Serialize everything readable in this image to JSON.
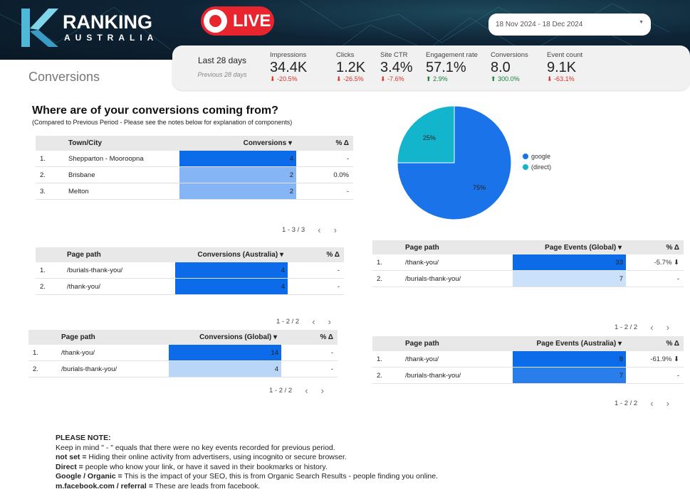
{
  "header": {
    "logo": {
      "line1": "RANKING",
      "line2": "AUSTRALIA"
    },
    "live_label": "LIVE",
    "date_range": "18 Nov 2024 - 18 Dec 2024",
    "live_color": "#e8252e"
  },
  "page_title": "Conversions",
  "scorecards": {
    "period": "Last 28 days",
    "compare": "Previous 28 days",
    "items": [
      {
        "label": "Impressions",
        "value": "34.4K",
        "delta": "-20.5%",
        "dir": "down"
      },
      {
        "label": "Clicks",
        "value": "1.2K",
        "delta": "-26.5%",
        "dir": "down"
      },
      {
        "label": "Site CTR",
        "value": "3.4%",
        "delta": "-7.6%",
        "dir": "down"
      },
      {
        "label": "Engagement rate",
        "value": "57.1%",
        "delta": "2.9%",
        "dir": "up"
      },
      {
        "label": "Conversions",
        "value": "8.0",
        "delta": "300.0%",
        "dir": "up"
      },
      {
        "label": "Event count",
        "value": "9.1K",
        "delta": "-63.1%",
        "dir": "down"
      }
    ]
  },
  "section": {
    "title": "Where are of your conversions coming from?",
    "subtitle": "(Compared to Previous Period - Please see the notes below for explanation of components)"
  },
  "tables": [
    {
      "headers": [
        "Town/City",
        "Conversions ▾",
        "% Δ"
      ],
      "rows": [
        {
          "num": "1.",
          "name": "Shepparton - Mooroopna",
          "value": 4,
          "delta": "-"
        },
        {
          "num": "2.",
          "name": "Brisbane",
          "value": 2,
          "delta": "0.0%"
        },
        {
          "num": "3.",
          "name": "Melton",
          "value": 2,
          "delta": "-"
        }
      ],
      "pagination": "1 - 3 / 3"
    },
    {
      "headers": [
        "Page path",
        "Conversions (Australia) ▾",
        "% Δ"
      ],
      "rows": [
        {
          "num": "1.",
          "name": "/burials-thank-you/",
          "value": 4,
          "delta": "-"
        },
        {
          "num": "2.",
          "name": "/thank-you/",
          "value": 4,
          "delta": "-"
        }
      ],
      "pagination": "1 - 2 / 2"
    },
    {
      "headers": [
        "Page path",
        "Conversions (Global) ▾",
        "% Δ"
      ],
      "rows": [
        {
          "num": "1.",
          "name": "/thank-you/",
          "value": 14,
          "delta": "-"
        },
        {
          "num": "2.",
          "name": "/burials-thank-you/",
          "value": 4,
          "delta": "-"
        }
      ],
      "pagination": "1 - 2 / 2"
    },
    {
      "headers": [
        "Page path",
        "Page Events (Global) ▾",
        "% Δ"
      ],
      "rows": [
        {
          "num": "1.",
          "name": "/thank-you/",
          "value": 33,
          "delta": "-5.7% ⬇"
        },
        {
          "num": "2.",
          "name": "/burials-thank-you/",
          "value": 7,
          "delta": "-"
        }
      ],
      "pagination": "1 - 2 / 2"
    },
    {
      "headers": [
        "Page path",
        "Page Events (Australia) ▾",
        "% Δ"
      ],
      "rows": [
        {
          "num": "1.",
          "name": "/thank-you/",
          "value": 8,
          "delta": "-61.9% ⬇"
        },
        {
          "num": "2.",
          "name": "/burials-thank-you/",
          "value": 7,
          "delta": "-"
        }
      ],
      "pagination": "1 - 2 / 2"
    }
  ],
  "pagination_icons": {
    "prev": "‹",
    "next": "›"
  },
  "chart_data": {
    "type": "pie",
    "categories": [
      "google",
      "(direct)"
    ],
    "values": [
      75,
      25
    ],
    "labels": [
      "75%",
      "25%"
    ],
    "colors": [
      "#1a73e8",
      "#12b5cb"
    ],
    "legend": "right"
  },
  "notes": {
    "title": "PLEASE NOTE:",
    "line1": "Keep in mind \" - \" equals that there were no key events recorded for previous period.",
    "items": [
      {
        "term": "not set =",
        "text": " Hiding their online activity from advertisers, using incognito or secure browser."
      },
      {
        "term": "Direct =",
        "text": " people who know your link, or have it saved in their bookmarks or history."
      },
      {
        "term": "Google / Organic =",
        "text": " This is the impact of your SEO, this is from Organic Search Results - people finding you online."
      },
      {
        "term": "m.facebook.com / referral =",
        "text": " These are leads from facebook."
      }
    ]
  }
}
